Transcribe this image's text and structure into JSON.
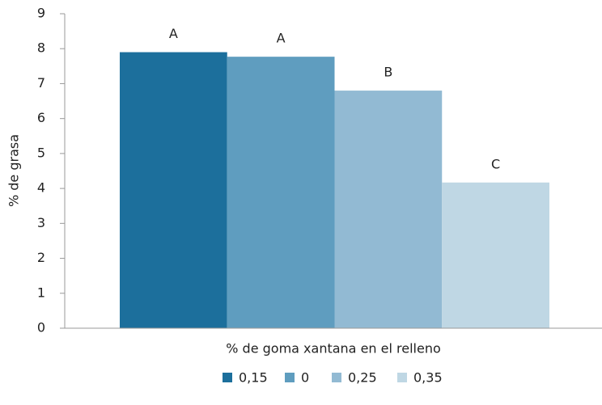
{
  "chart_data": {
    "type": "bar",
    "x_label": "% de goma xantana en el relleno",
    "y_label": "% de grasa",
    "categories": [
      null
    ],
    "series": [
      {
        "name": "0,15",
        "color": "#1c6f9c",
        "values": [
          7.9
        ],
        "annotation": "A"
      },
      {
        "name": "0",
        "color": "#5f9dbf",
        "values": [
          7.77
        ],
        "annotation": "A"
      },
      {
        "name": "0,25",
        "color": "#92bad3",
        "values": [
          6.8
        ],
        "annotation": "B"
      },
      {
        "name": "0,35",
        "color": "#bfd7e4",
        "values": [
          4.17
        ],
        "annotation": "C"
      }
    ],
    "ylim": [
      0,
      9
    ],
    "yticks": [
      0,
      1,
      2,
      3,
      4,
      5,
      6,
      7,
      8,
      9
    ],
    "grid": false,
    "legend": "bottom"
  }
}
